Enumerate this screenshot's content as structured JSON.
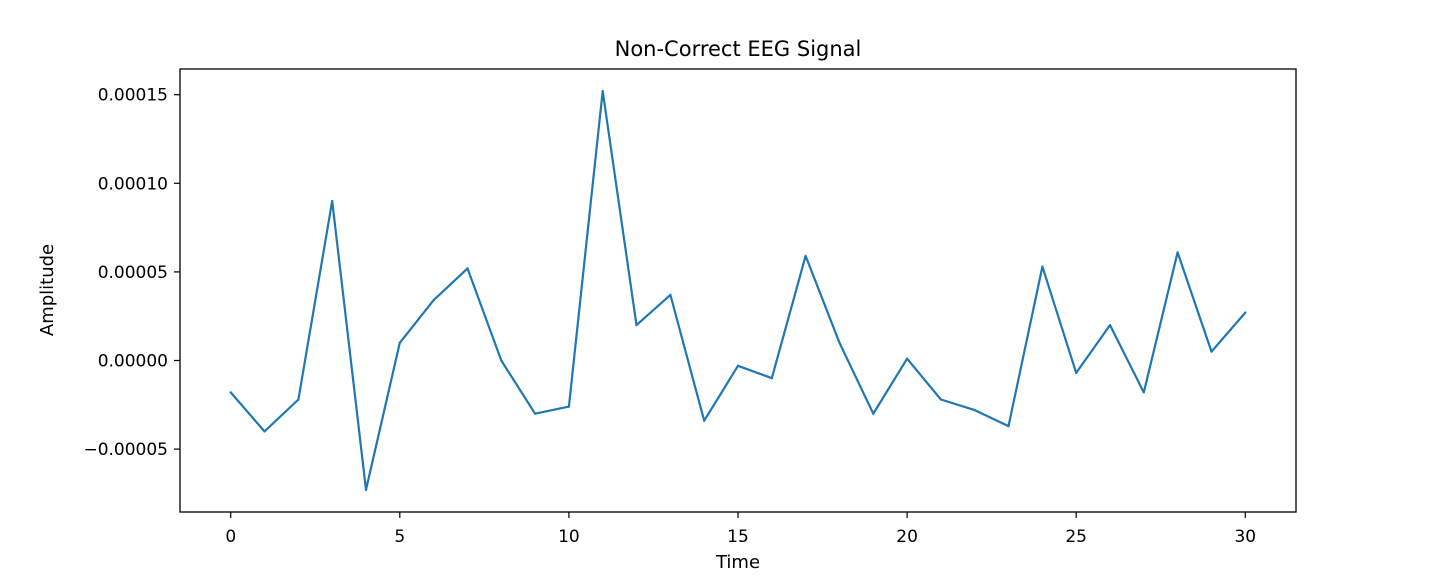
{
  "chart_data": {
    "type": "line",
    "title": "Non-Correct EEG Signal",
    "xlabel": "Time",
    "ylabel": "Amplitude",
    "xlim": [
      -1.5,
      31.5
    ],
    "ylim": [
      -8.55e-05,
      0.0001645
    ],
    "x_ticks": [
      0,
      5,
      10,
      15,
      20,
      25,
      30
    ],
    "x_tick_labels": [
      "0",
      "5",
      "10",
      "15",
      "20",
      "25",
      "30"
    ],
    "y_ticks": [
      -5e-05,
      0,
      5e-05,
      0.0001,
      0.00015
    ],
    "y_tick_labels": [
      "−0.00005",
      "0.00000",
      "0.00005",
      "0.00010",
      "0.00015"
    ],
    "grid": false,
    "legend": "none",
    "series": [
      {
        "color": "#1f77b4",
        "x": [
          0,
          1,
          2,
          3,
          4,
          5,
          6,
          7,
          8,
          9,
          10,
          11,
          12,
          13,
          14,
          15,
          16,
          17,
          18,
          19,
          20,
          21,
          22,
          23,
          24,
          25,
          26,
          27,
          28,
          29,
          30
        ],
        "values": [
          -1.8e-05,
          -4e-05,
          -2.2e-05,
          9e-05,
          -7.3e-05,
          1e-05,
          3.4e-05,
          5.2e-05,
          0.0,
          -3e-05,
          -2.6e-05,
          0.000152,
          2e-05,
          3.7e-05,
          -3.4e-05,
          -3e-06,
          -1e-05,
          5.9e-05,
          1e-05,
          -3e-05,
          1e-06,
          -2.2e-05,
          -2.8e-05,
          -3.7e-05,
          5.3e-05,
          -7e-06,
          2e-05,
          -1.8e-05,
          6.1e-05,
          5e-06,
          2.7e-05
        ]
      }
    ]
  }
}
